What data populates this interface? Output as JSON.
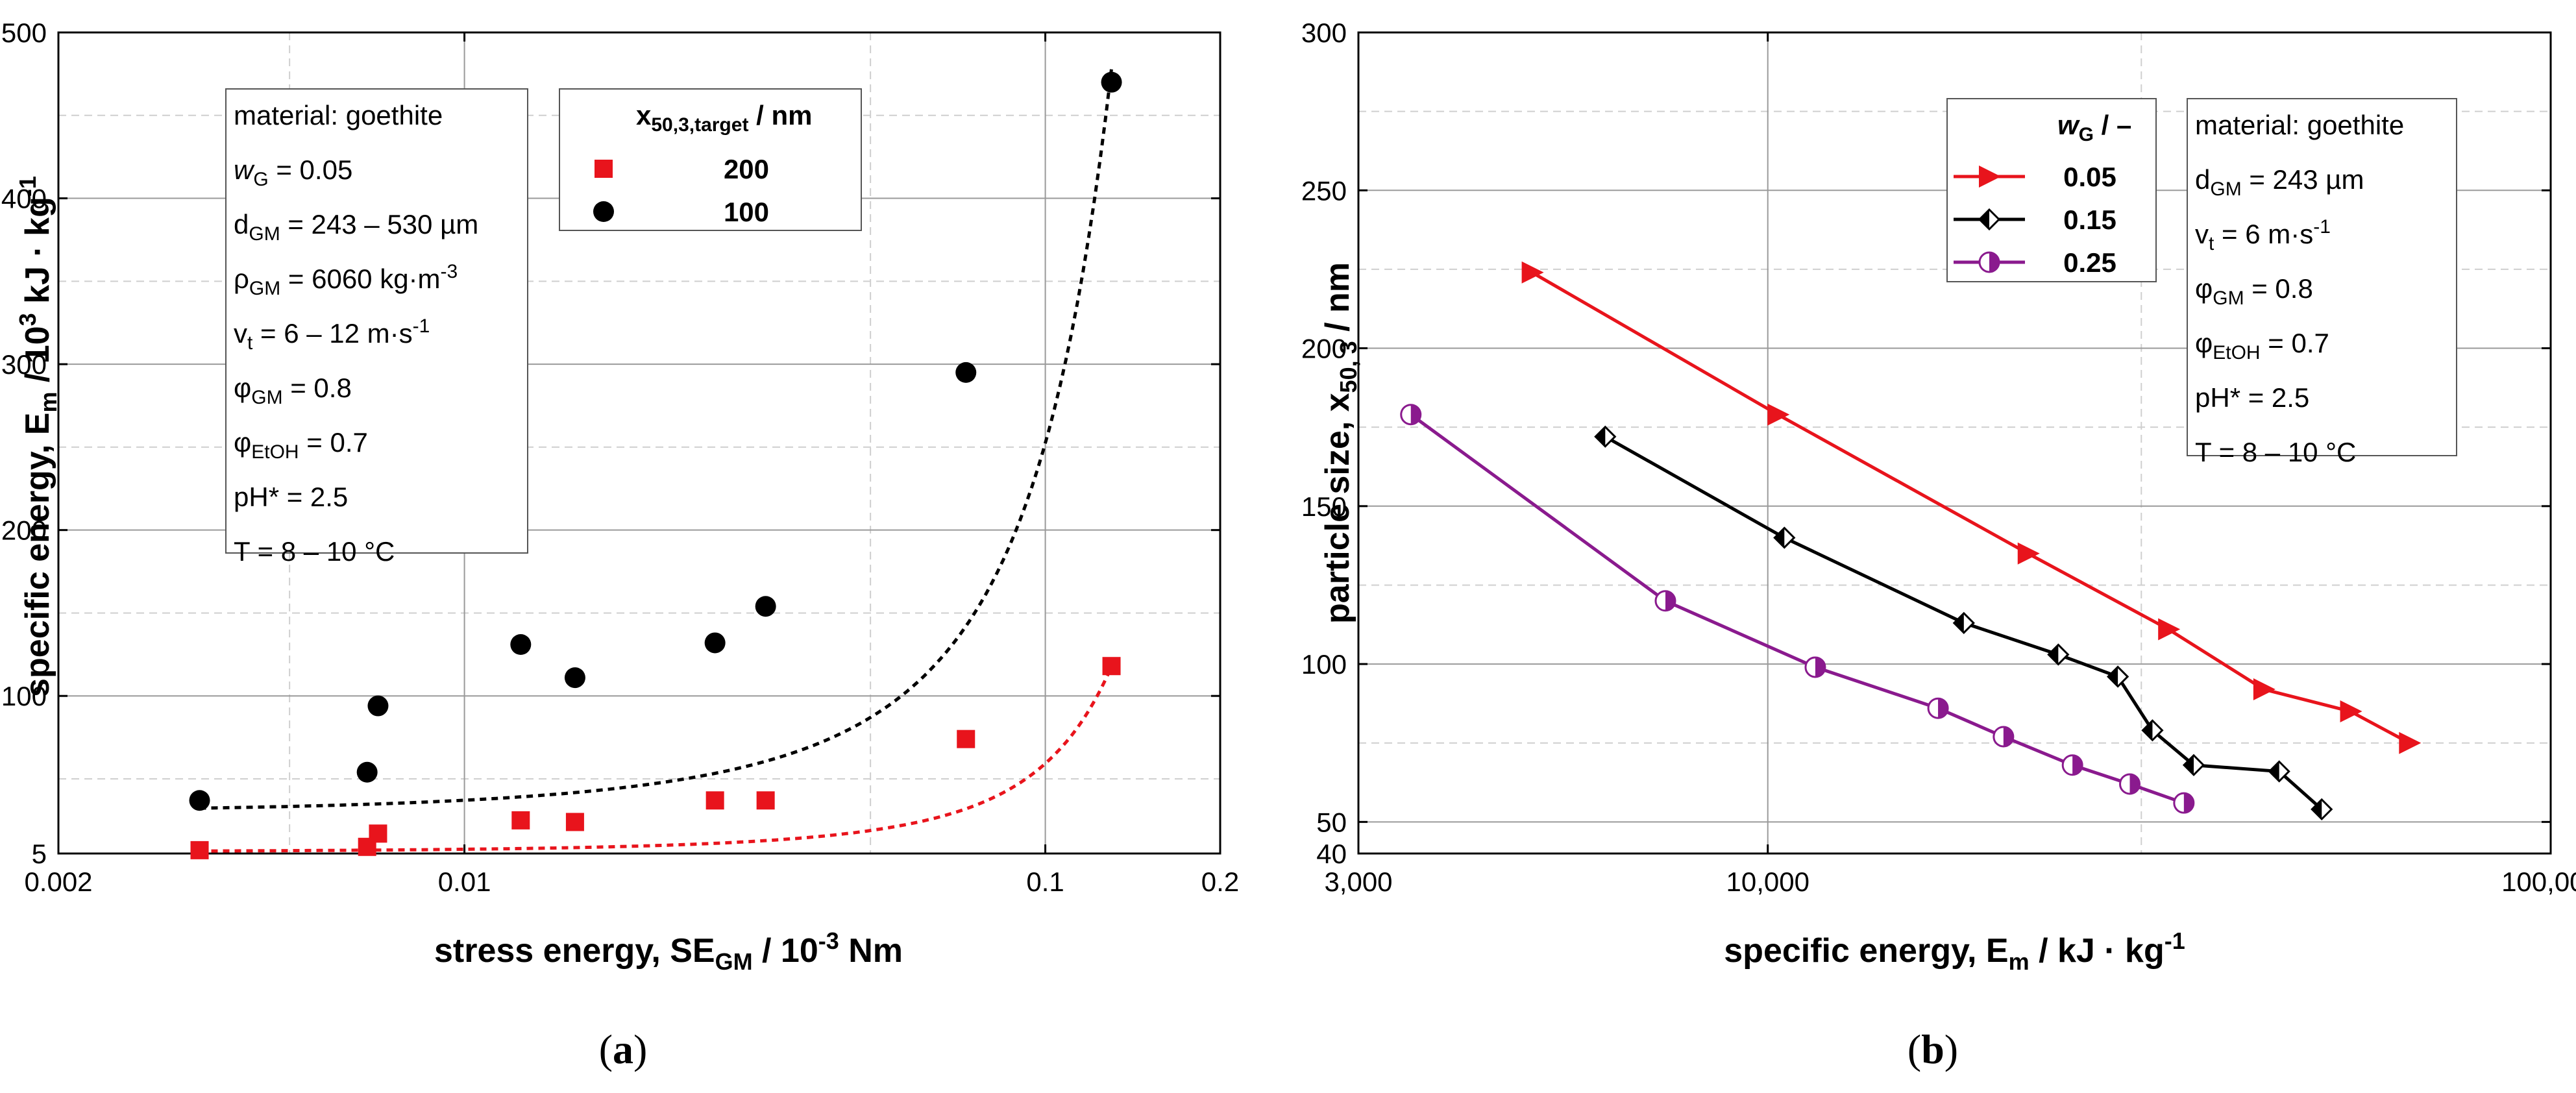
{
  "chart_data": [
    {
      "type": "scatter",
      "panel_label": "a",
      "xlabel": "stress energy, SE",
      "xlabel_sub": "GM",
      "xlabel_unit": " / 10",
      "xlabel_sup": "-3",
      "xlabel_end": " Nm",
      "ylabel": "specific energy, E",
      "ylabel_sub": "m",
      "ylabel_mid": " / 10",
      "ylabel_sup": "3",
      "ylabel_end": " kJ · kg",
      "ylabel_sup2": "-1",
      "xscale": "log",
      "xlim": [
        0.002,
        0.2
      ],
      "ylim": [
        5,
        500
      ],
      "xticks": [
        0.002,
        0.01,
        0.1,
        0.2
      ],
      "xtick_labels": [
        "0.002",
        "0.01",
        "0.1",
        "0.2"
      ],
      "yticks": [
        5,
        100,
        200,
        300,
        400,
        500
      ],
      "ytick_labels": [
        "5",
        "100",
        "200",
        "300",
        "400",
        "500"
      ],
      "legend_title": "x",
      "legend_title_sub": "50,3,target",
      "legend_title_end": " / nm",
      "series": [
        {
          "name": "200",
          "marker": "square",
          "color": "#e8141c",
          "x": [
            0.0035,
            0.0068,
            0.0071,
            0.0125,
            0.0155,
            0.027,
            0.033,
            0.073,
            0.13
          ],
          "y": [
            7,
            9,
            17,
            25,
            24,
            37,
            37,
            74,
            118
          ]
        },
        {
          "name": "100",
          "marker": "circle",
          "color": "#000000",
          "x": [
            0.0035,
            0.0068,
            0.0071,
            0.0125,
            0.0155,
            0.027,
            0.033,
            0.073,
            0.13
          ],
          "y": [
            37,
            54,
            94,
            131,
            111,
            132,
            154,
            295,
            470
          ]
        }
      ],
      "fits": [
        {
          "series": "200",
          "color": "#e8141c",
          "a": 6.0,
          "b": 22.9
        },
        {
          "series": "100",
          "color": "#000000",
          "a": 30.0,
          "b": 21.3
        }
      ],
      "info_lines": [
        {
          "t": "material: goethite"
        },
        {
          "t": "w",
          "s": "G",
          "e": " = 0.05",
          "italic": true
        },
        {
          "t": "d",
          "s": "GM",
          "e": " = 243 – 530 µm"
        },
        {
          "t": "ρ",
          "s": "GM",
          "e": " = 6060 kg·m",
          "p": "-3"
        },
        {
          "t": "v",
          "s": "t",
          "e": " = 6 – 12 m·s",
          "p": "-1"
        },
        {
          "t": "φ",
          "s": "GM",
          "e": " = 0.8"
        },
        {
          "t": "φ",
          "s": "EtOH",
          "e": " = 0.7"
        },
        {
          "t": "pH* = 2.5"
        },
        {
          "t": "T = 8 – 10 °C"
        }
      ]
    },
    {
      "type": "line",
      "panel_label": "b",
      "xlabel": "specific energy, E",
      "xlabel_sub": "m",
      "xlabel_end": " / kJ · kg",
      "xlabel_sup": "-1",
      "ylabel": "particle size, x",
      "ylabel_sub": "50, 3",
      "ylabel_end": " / nm",
      "xscale": "log",
      "xlim": [
        3000,
        100000
      ],
      "ylim": [
        40,
        300
      ],
      "xticks": [
        3000,
        10000,
        100000
      ],
      "xtick_labels": [
        "3,000",
        "10,000",
        "100,000"
      ],
      "yticks": [
        40,
        50,
        100,
        150,
        200,
        250,
        300
      ],
      "ytick_labels": [
        "40",
        "50",
        "100",
        "150",
        "200",
        "250",
        "300"
      ],
      "legend_title": "w",
      "legend_title_sub": "G",
      "legend_title_end": " / –",
      "series": [
        {
          "name": "0.05",
          "marker": "triangle-right",
          "color": "#e8141c",
          "x": [
            5000,
            10300,
            21500,
            32500,
            43000,
            55500,
            66000
          ],
          "y": [
            224,
            179,
            135,
            111,
            92,
            85,
            75
          ]
        },
        {
          "name": "0.15",
          "marker": "diamond",
          "color": "#000000",
          "x": [
            6200,
            10500,
            17800,
            23500,
            28000,
            31000,
            35000,
            45000,
            51000
          ],
          "y": [
            172,
            140,
            113,
            103,
            96,
            79,
            68,
            66,
            54
          ]
        },
        {
          "name": "0.25",
          "marker": "circle-half",
          "color": "#8a1a8e",
          "x": [
            3500,
            7400,
            11500,
            16500,
            20000,
            24500,
            29000,
            34000
          ],
          "y": [
            179,
            120,
            99,
            86,
            77,
            68,
            62,
            56
          ]
        }
      ],
      "info_lines": [
        {
          "t": "material: goethite"
        },
        {
          "t": "d",
          "s": "GM",
          "e": " = 243 µm"
        },
        {
          "t": "v",
          "s": "t",
          "e": " = 6 m·s",
          "p": "-1"
        },
        {
          "t": "φ",
          "s": "GM",
          "e": " = 0.8"
        },
        {
          "t": "φ",
          "s": "EtOH",
          "e": " = 0.7"
        },
        {
          "t": "pH* = 2.5"
        },
        {
          "t": "T = 8 – 10 °C"
        }
      ]
    }
  ],
  "captions": [
    "(a)",
    "(b)"
  ],
  "colors": {
    "grid_major": "#9a9a9a",
    "grid_minor": "#cfcfcf",
    "frame": "#000000"
  }
}
